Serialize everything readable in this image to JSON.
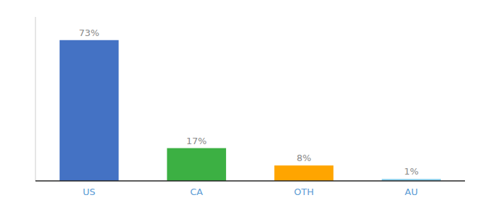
{
  "chart_data": {
    "type": "bar",
    "categories": [
      "US",
      "CA",
      "OTH",
      "AU"
    ],
    "values": [
      73,
      17,
      8,
      1
    ],
    "value_labels": [
      "73%",
      "17%",
      "8%",
      "1%"
    ],
    "colors": [
      "#4472c4",
      "#3cb043",
      "#ffa500",
      "#87ceeb"
    ],
    "ylim": [
      0,
      85
    ],
    "data_labels": true,
    "tick_labels": "x",
    "grid": false
  }
}
